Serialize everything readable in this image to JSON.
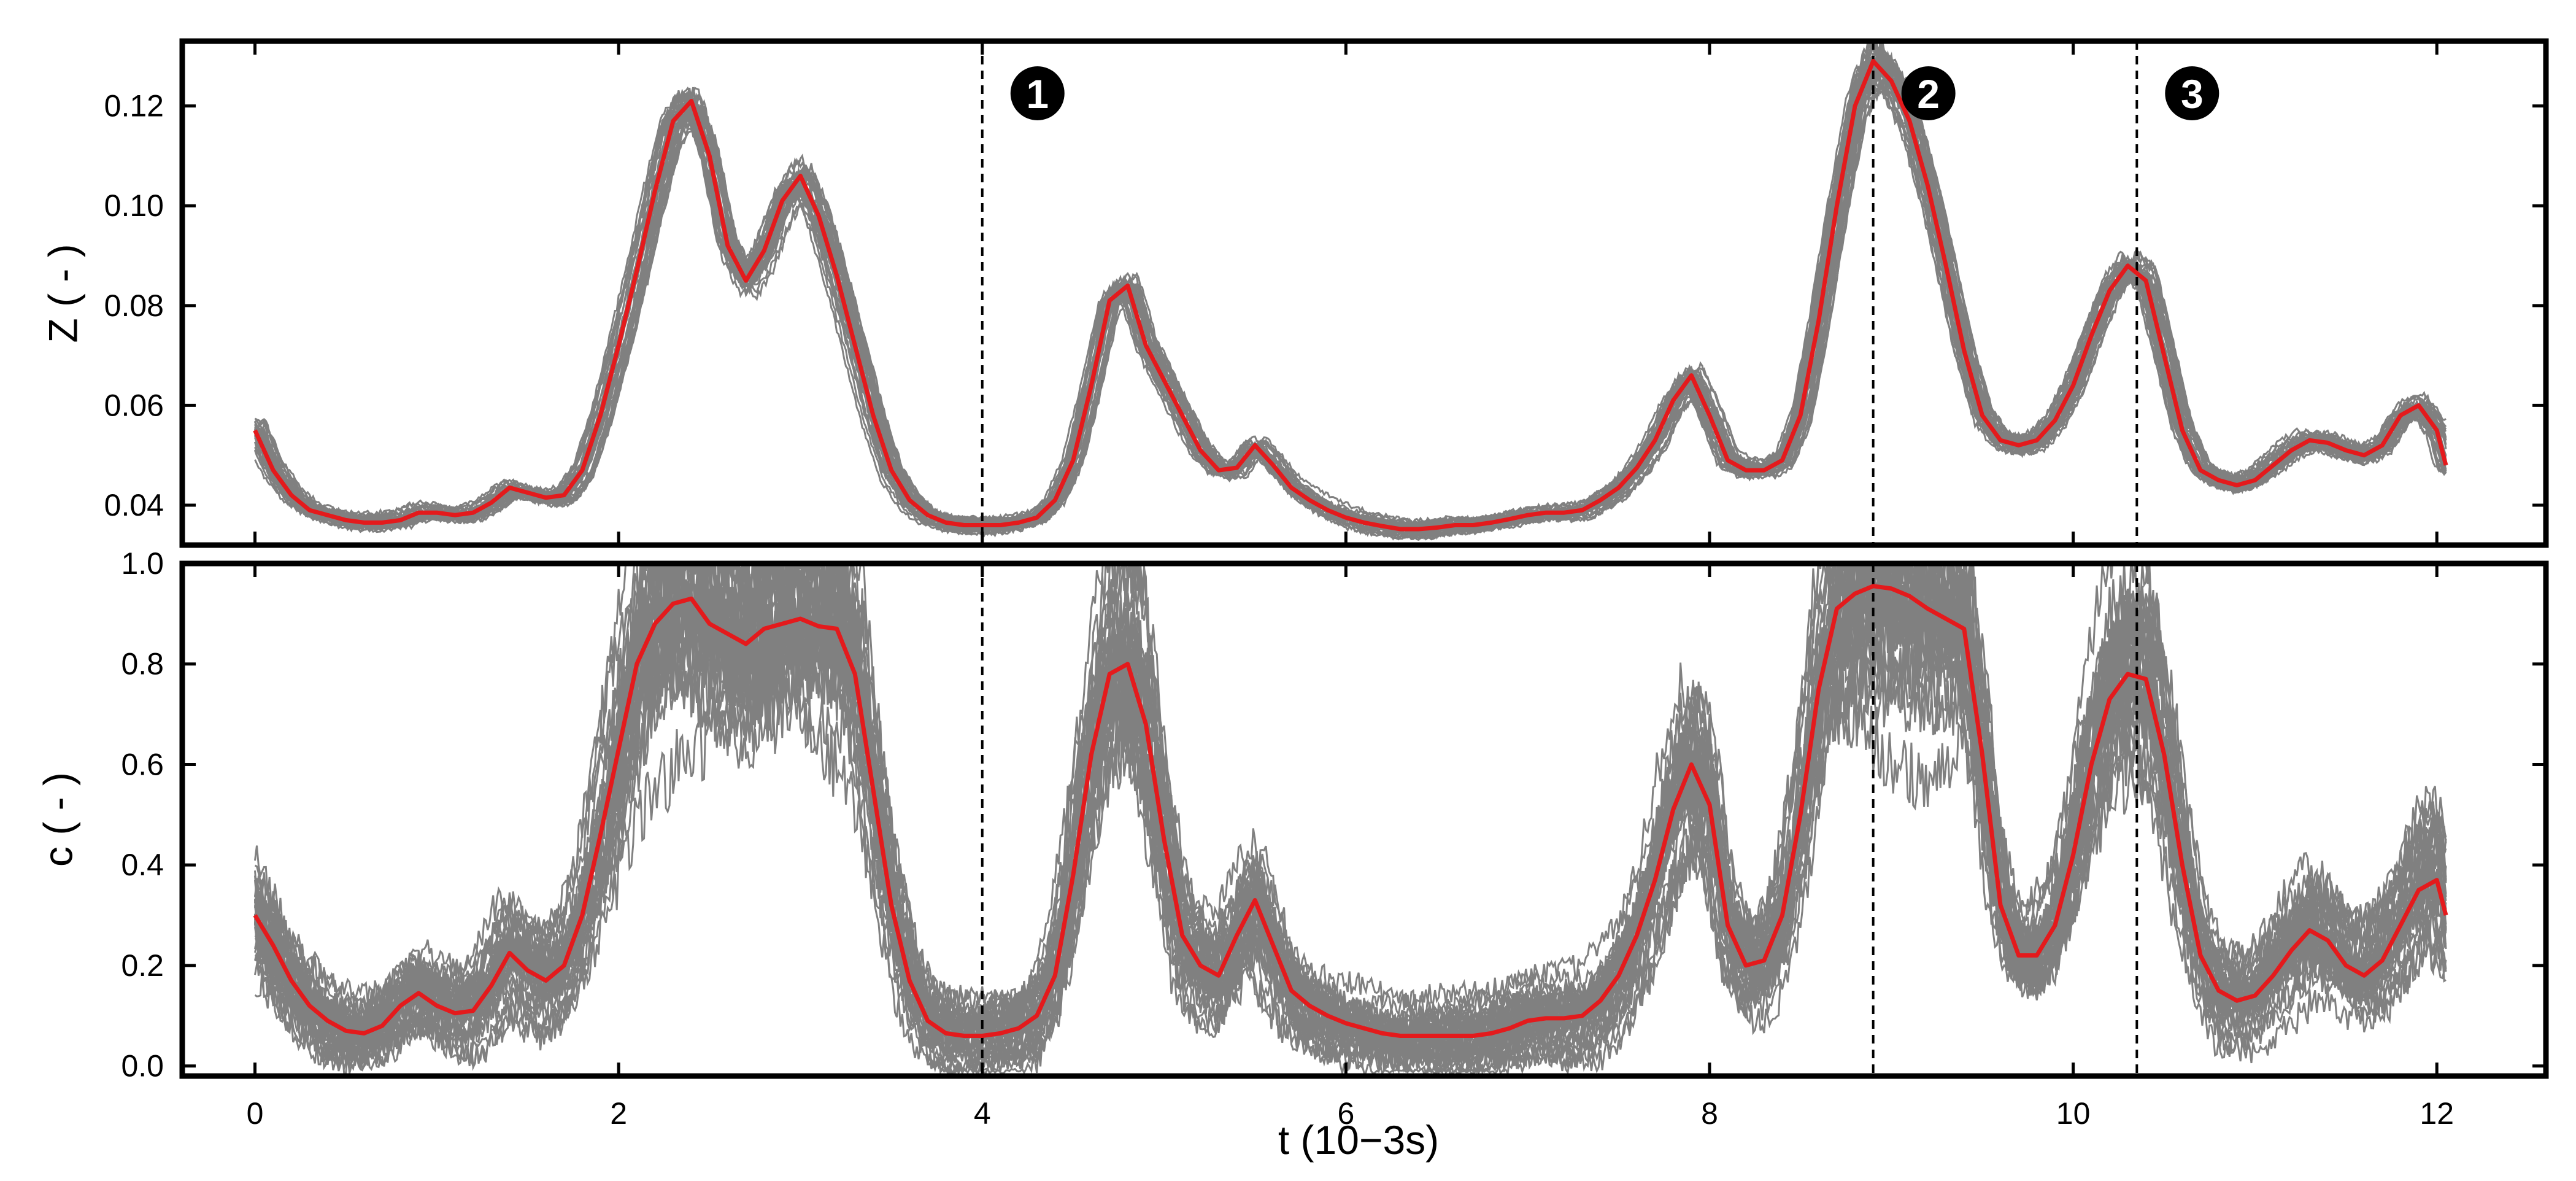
{
  "chart_data": [
    {
      "type": "line",
      "panel": "top",
      "ylabel": "Z ( - )",
      "xlabel": "",
      "xlim": [
        -0.4,
        12.6
      ],
      "ylim": [
        0.032,
        0.133
      ],
      "x_ticks": [
        0,
        2,
        4,
        6,
        8,
        10,
        12
      ],
      "y_ticks": [
        0.04,
        0.06,
        0.08,
        0.1,
        0.12
      ],
      "y_tick_labels": [
        "0.04",
        "0.06",
        "0.08",
        "0.10",
        "0.12"
      ],
      "mean_series": {
        "name": "mean",
        "color": "#e41a1c",
        "x": [
          0,
          0.1,
          0.2,
          0.3,
          0.4,
          0.5,
          0.6,
          0.7,
          0.8,
          0.9,
          1.0,
          1.1,
          1.2,
          1.3,
          1.4,
          1.5,
          1.6,
          1.7,
          1.8,
          1.9,
          2.0,
          2.1,
          2.2,
          2.3,
          2.4,
          2.5,
          2.6,
          2.7,
          2.8,
          2.9,
          3.0,
          3.1,
          3.2,
          3.3,
          3.4,
          3.5,
          3.6,
          3.7,
          3.8,
          3.9,
          4.0,
          4.1,
          4.2,
          4.3,
          4.4,
          4.5,
          4.6,
          4.7,
          4.8,
          4.9,
          5.0,
          5.1,
          5.2,
          5.3,
          5.4,
          5.5,
          5.6,
          5.7,
          5.8,
          5.9,
          6.0,
          6.1,
          6.2,
          6.3,
          6.4,
          6.5,
          6.6,
          6.7,
          6.8,
          6.9,
          7.0,
          7.1,
          7.2,
          7.3,
          7.4,
          7.5,
          7.6,
          7.7,
          7.8,
          7.9,
          8.0,
          8.1,
          8.2,
          8.3,
          8.4,
          8.5,
          8.6,
          8.7,
          8.8,
          8.9,
          9.0,
          9.1,
          9.2,
          9.3,
          9.4,
          9.5,
          9.6,
          9.7,
          9.8,
          9.9,
          10.0,
          10.1,
          10.2,
          10.3,
          10.4,
          10.5,
          10.6,
          10.7,
          10.8,
          10.9,
          11.0,
          11.1,
          11.2,
          11.3,
          11.4,
          11.5,
          11.6,
          11.7,
          11.8,
          11.9,
          12.0,
          12.05
        ],
        "y": [
          0.055,
          0.047,
          0.042,
          0.039,
          0.038,
          0.037,
          0.0365,
          0.0365,
          0.037,
          0.0385,
          0.0385,
          0.038,
          0.0385,
          0.0405,
          0.0435,
          0.0425,
          0.0415,
          0.042,
          0.047,
          0.058,
          0.072,
          0.087,
          0.103,
          0.117,
          0.121,
          0.11,
          0.092,
          0.085,
          0.091,
          0.101,
          0.106,
          0.098,
          0.086,
          0.072,
          0.058,
          0.047,
          0.041,
          0.038,
          0.0365,
          0.036,
          0.036,
          0.036,
          0.0365,
          0.0375,
          0.041,
          0.049,
          0.064,
          0.081,
          0.084,
          0.072,
          0.065,
          0.058,
          0.051,
          0.047,
          0.0475,
          0.052,
          0.048,
          0.0435,
          0.041,
          0.039,
          0.0375,
          0.0365,
          0.0358,
          0.0352,
          0.0352,
          0.0355,
          0.036,
          0.036,
          0.0365,
          0.0372,
          0.038,
          0.0385,
          0.0385,
          0.039,
          0.041,
          0.0435,
          0.0475,
          0.053,
          0.061,
          0.066,
          0.058,
          0.049,
          0.047,
          0.047,
          0.049,
          0.058,
          0.077,
          0.1,
          0.12,
          0.129,
          0.125,
          0.117,
          0.104,
          0.088,
          0.071,
          0.058,
          0.053,
          0.052,
          0.053,
          0.057,
          0.064,
          0.074,
          0.083,
          0.088,
          0.085,
          0.07,
          0.055,
          0.047,
          0.045,
          0.044,
          0.045,
          0.048,
          0.051,
          0.053,
          0.0525,
          0.051,
          0.05,
          0.052,
          0.058,
          0.06,
          0.055,
          0.048
        ]
      },
      "gray_series_note": "ensemble of realizations spread around the mean"
    },
    {
      "type": "line",
      "panel": "bottom",
      "ylabel": "c ( - )",
      "xlabel": "t (10−3s)",
      "xlim": [
        -0.4,
        12.6
      ],
      "ylim": [
        -0.02,
        1.0
      ],
      "x_ticks": [
        0,
        2,
        4,
        6,
        8,
        10,
        12
      ],
      "x_tick_labels": [
        "0",
        "2",
        "4",
        "6",
        "8",
        "10",
        "12"
      ],
      "y_ticks": [
        0.0,
        0.2,
        0.4,
        0.6,
        0.8,
        1.0
      ],
      "y_tick_labels": [
        "0.0",
        "0.2",
        "0.4",
        "0.6",
        "0.8",
        "1.0"
      ],
      "mean_series": {
        "name": "mean",
        "color": "#e41a1c",
        "x": [
          0,
          0.1,
          0.2,
          0.3,
          0.4,
          0.5,
          0.6,
          0.7,
          0.8,
          0.9,
          1.0,
          1.1,
          1.2,
          1.3,
          1.4,
          1.5,
          1.6,
          1.7,
          1.8,
          1.9,
          2.0,
          2.1,
          2.2,
          2.3,
          2.4,
          2.5,
          2.6,
          2.7,
          2.8,
          2.9,
          3.0,
          3.1,
          3.2,
          3.3,
          3.4,
          3.5,
          3.6,
          3.7,
          3.8,
          3.9,
          4.0,
          4.1,
          4.2,
          4.3,
          4.4,
          4.5,
          4.6,
          4.7,
          4.8,
          4.9,
          5.0,
          5.1,
          5.2,
          5.3,
          5.4,
          5.5,
          5.6,
          5.7,
          5.8,
          5.9,
          6.0,
          6.1,
          6.2,
          6.3,
          6.4,
          6.5,
          6.6,
          6.7,
          6.8,
          6.9,
          7.0,
          7.1,
          7.2,
          7.3,
          7.4,
          7.5,
          7.6,
          7.7,
          7.8,
          7.9,
          8.0,
          8.1,
          8.2,
          8.3,
          8.4,
          8.5,
          8.6,
          8.7,
          8.8,
          8.9,
          9.0,
          9.1,
          9.2,
          9.3,
          9.4,
          9.5,
          9.6,
          9.7,
          9.8,
          9.9,
          10.0,
          10.1,
          10.2,
          10.3,
          10.4,
          10.5,
          10.6,
          10.7,
          10.8,
          10.9,
          11.0,
          11.1,
          11.2,
          11.3,
          11.4,
          11.5,
          11.6,
          11.7,
          11.8,
          11.9,
          12.0,
          12.05
        ],
        "y": [
          0.3,
          0.24,
          0.17,
          0.12,
          0.09,
          0.07,
          0.065,
          0.08,
          0.12,
          0.145,
          0.12,
          0.105,
          0.11,
          0.16,
          0.225,
          0.19,
          0.17,
          0.2,
          0.3,
          0.46,
          0.63,
          0.8,
          0.88,
          0.92,
          0.93,
          0.88,
          0.86,
          0.84,
          0.87,
          0.88,
          0.89,
          0.875,
          0.87,
          0.78,
          0.55,
          0.32,
          0.17,
          0.09,
          0.065,
          0.06,
          0.06,
          0.065,
          0.075,
          0.1,
          0.18,
          0.38,
          0.62,
          0.78,
          0.8,
          0.68,
          0.45,
          0.26,
          0.2,
          0.18,
          0.26,
          0.33,
          0.24,
          0.15,
          0.12,
          0.1,
          0.085,
          0.075,
          0.065,
          0.06,
          0.06,
          0.06,
          0.06,
          0.06,
          0.065,
          0.075,
          0.09,
          0.095,
          0.095,
          0.1,
          0.13,
          0.18,
          0.26,
          0.37,
          0.51,
          0.6,
          0.52,
          0.28,
          0.2,
          0.21,
          0.3,
          0.5,
          0.75,
          0.91,
          0.94,
          0.955,
          0.95,
          0.935,
          0.91,
          0.89,
          0.87,
          0.62,
          0.32,
          0.22,
          0.22,
          0.28,
          0.42,
          0.6,
          0.73,
          0.78,
          0.77,
          0.62,
          0.4,
          0.22,
          0.15,
          0.13,
          0.14,
          0.18,
          0.23,
          0.27,
          0.25,
          0.2,
          0.18,
          0.21,
          0.28,
          0.35,
          0.37,
          0.3
        ]
      },
      "gray_series_note": "ensemble of realizations spread around the mean"
    }
  ],
  "markers": [
    {
      "label": "1",
      "x": 4.0
    },
    {
      "label": "2",
      "x": 8.9
    },
    {
      "label": "3",
      "x": 10.35
    }
  ],
  "colors": {
    "ensemble": "#808080",
    "mean": "#e41a1c",
    "marker_fill": "#000000",
    "marker_text": "#ffffff"
  }
}
